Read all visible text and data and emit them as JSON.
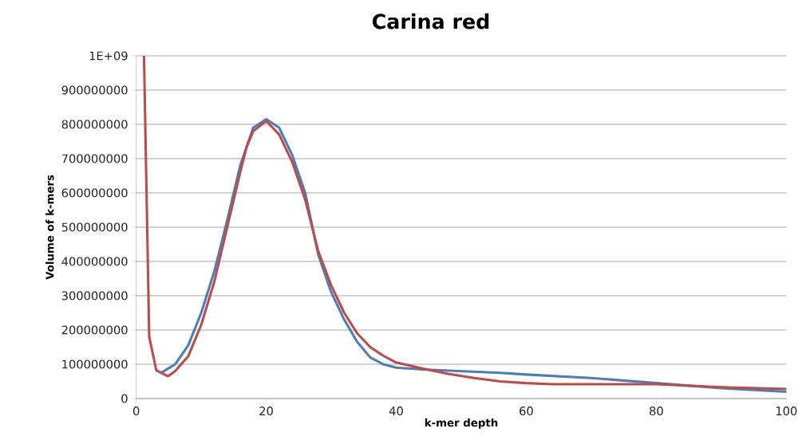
{
  "chart_data": {
    "type": "line",
    "title": "Carina red",
    "xlabel": "k-mer depth",
    "ylabel": "Volume of k-mers",
    "xlim": [
      0,
      100
    ],
    "xticks": [
      0,
      20,
      40,
      60,
      80,
      100
    ],
    "ylim": [
      0,
      1000000000
    ],
    "yticks": [
      0,
      100000000,
      200000000,
      300000000,
      400000000,
      500000000,
      600000000,
      700000000,
      800000000,
      900000000,
      {
        "value": 1000000000,
        "label": "1E+09"
      }
    ],
    "grid": "y",
    "marker": "none",
    "line_style": "solid",
    "series": [
      {
        "color": "#4a7ebb",
        "x": [
          4,
          6,
          8,
          10,
          12,
          14,
          16,
          18,
          20,
          22,
          24,
          26,
          28,
          30,
          32,
          34,
          36,
          38,
          40,
          44,
          50,
          56,
          60,
          70,
          80,
          90,
          100
        ],
        "values": [
          77000000,
          100000000,
          155000000,
          250000000,
          370000000,
          520000000,
          680000000,
          790000000,
          815000000,
          790000000,
          710000000,
          600000000,
          420000000,
          310000000,
          230000000,
          165000000,
          120000000,
          100000000,
          90000000,
          85000000,
          80000000,
          75000000,
          70000000,
          60000000,
          45000000,
          30000000,
          20000000
        ]
      },
      {
        "color": "#be4b48",
        "x": [
          1.2,
          2,
          3.1,
          4.9,
          6,
          8,
          10,
          12,
          14,
          16,
          17,
          18,
          20,
          22,
          24,
          26,
          28,
          30,
          32,
          34,
          36,
          38,
          40,
          44,
          48,
          52,
          56,
          60,
          64,
          70,
          80,
          90,
          100
        ],
        "values": [
          1000000000,
          180000000,
          82000000,
          65000000,
          80000000,
          123000000,
          215000000,
          340000000,
          500000000,
          660000000,
          735000000,
          780000000,
          810000000,
          770000000,
          690000000,
          580000000,
          430000000,
          330000000,
          250000000,
          190000000,
          150000000,
          125000000,
          105000000,
          88000000,
          72000000,
          60000000,
          50000000,
          45000000,
          42000000,
          42000000,
          42000000,
          33000000,
          28000000
        ]
      }
    ]
  }
}
